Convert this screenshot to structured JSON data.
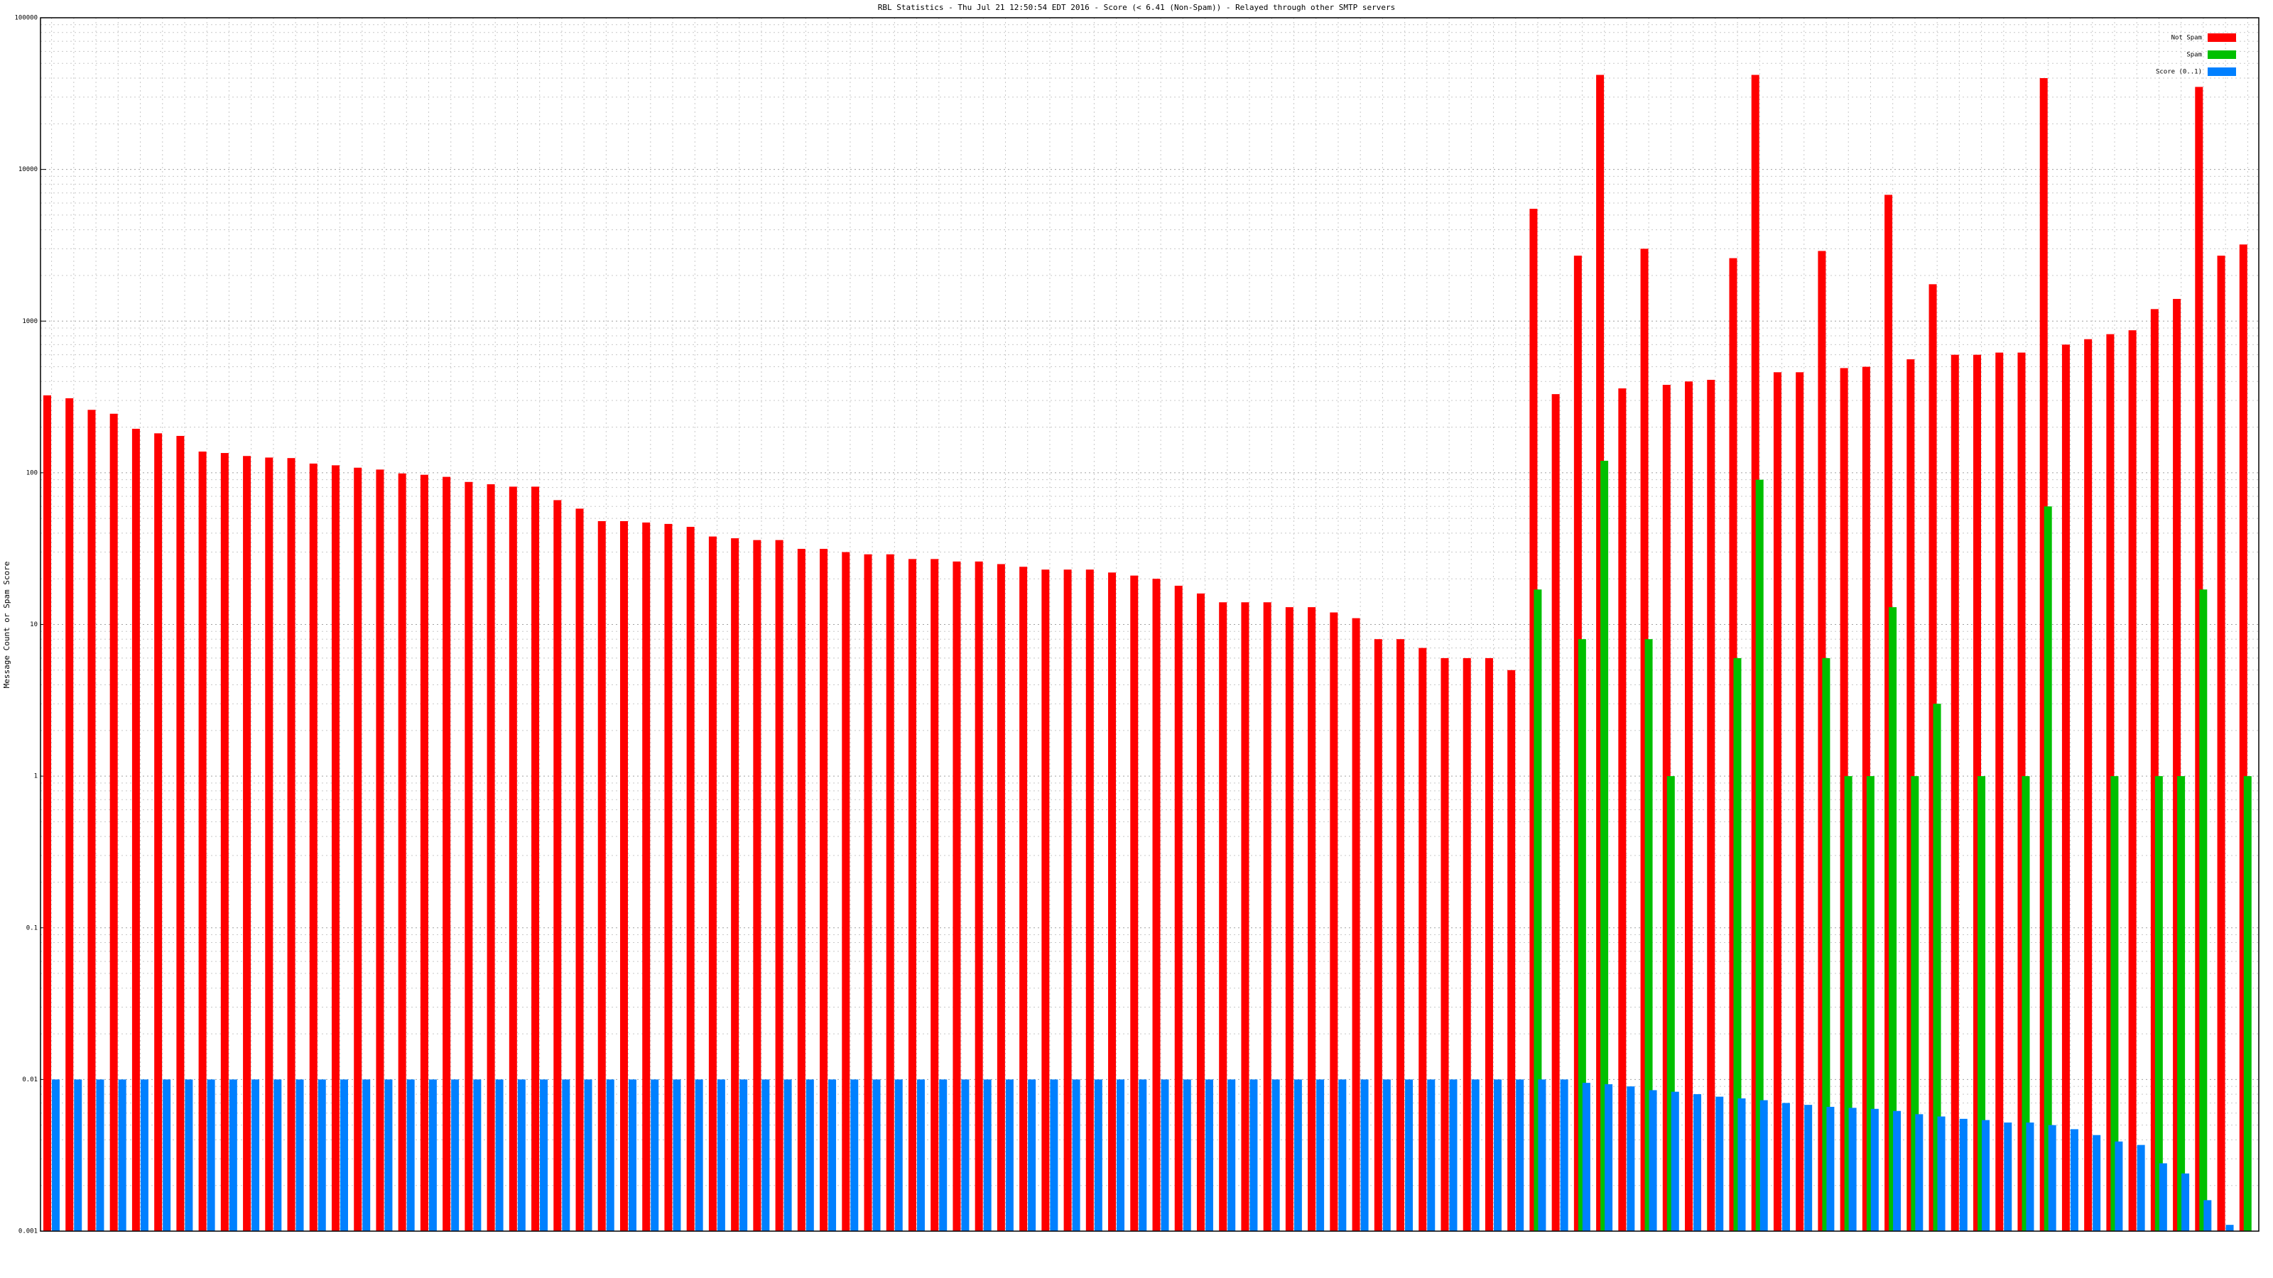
{
  "chart_data": {
    "type": "bar",
    "title": "RBL Statistics - Thu Jul 21 12:50:54 EDT 2016 - Score (< 6.41 (Non-Spam)) - Relayed through other SMTP servers",
    "y_label": "Message Count or Spam Score",
    "log_scale": true,
    "grid": true,
    "legend_position": "top-right",
    "ylim": [
      0.001,
      100000
    ],
    "yticks": [
      0.001,
      0.01,
      0.1,
      1,
      10,
      100,
      1000,
      10000,
      100000
    ],
    "categories": [
      null,
      null,
      null,
      null,
      null,
      null,
      null,
      null,
      null,
      null,
      null,
      null,
      null,
      null,
      null,
      null,
      null,
      null,
      null,
      null,
      null,
      null,
      null,
      null,
      null,
      null,
      null,
      null,
      null,
      null,
      null,
      null,
      null,
      null,
      null,
      null,
      null,
      null,
      null,
      null,
      null,
      null,
      null,
      null,
      null,
      null,
      null,
      null,
      null,
      null,
      null,
      null,
      null,
      null,
      null,
      null,
      null,
      null,
      null,
      null,
      null,
      null,
      null,
      null,
      null,
      null,
      null,
      null,
      null,
      null,
      null,
      null,
      null,
      null,
      null,
      null,
      null,
      null,
      null,
      null,
      null,
      null,
      null,
      null,
      null,
      null,
      null,
      null,
      null,
      null,
      null,
      null,
      null,
      null,
      null,
      null,
      null,
      null,
      null,
      null
    ],
    "series": [
      {
        "name": "Not Spam",
        "color": "#ff0000",
        "values": [
          324,
          310,
          260,
          245,
          195,
          182,
          175,
          138,
          135,
          129,
          126,
          125,
          115,
          112,
          108,
          105,
          99,
          97,
          94,
          87,
          84,
          81,
          81,
          66,
          58,
          48,
          48,
          47,
          46,
          44,
          38,
          37,
          36,
          36,
          31.5,
          31.5,
          30,
          29,
          29,
          27,
          27,
          26,
          26,
          25,
          24,
          23,
          23,
          23,
          22,
          21,
          20,
          18,
          16,
          14,
          14,
          14,
          13,
          13,
          12,
          11,
          8,
          8,
          7,
          6,
          6,
          6,
          5,
          5500,
          330,
          2700,
          42000,
          360,
          3000,
          380,
          400,
          410,
          2600,
          42000,
          460,
          460,
          2900,
          490,
          500,
          6800,
          560,
          1750,
          600,
          600,
          620,
          620,
          40000,
          700,
          760,
          820,
          870,
          1200,
          1400,
          35000,
          2700,
          3200
        ]
      },
      {
        "name": "Spam",
        "color": "#00c000",
        "values": [
          null,
          null,
          null,
          null,
          null,
          null,
          null,
          null,
          null,
          null,
          null,
          null,
          null,
          null,
          null,
          null,
          null,
          null,
          null,
          null,
          null,
          null,
          null,
          null,
          null,
          null,
          null,
          null,
          null,
          null,
          null,
          null,
          null,
          null,
          null,
          null,
          null,
          null,
          null,
          null,
          null,
          null,
          null,
          null,
          null,
          null,
          null,
          null,
          null,
          null,
          null,
          null,
          null,
          null,
          null,
          null,
          null,
          null,
          null,
          null,
          null,
          null,
          null,
          null,
          null,
          null,
          null,
          17,
          null,
          8,
          120,
          null,
          8,
          1,
          null,
          null,
          6,
          90,
          null,
          null,
          6,
          1,
          1,
          13,
          1,
          3,
          null,
          1,
          null,
          1,
          60,
          null,
          null,
          1,
          null,
          1,
          1,
          17,
          null,
          1
        ]
      },
      {
        "name": "Score (0..1)",
        "color": "#0080ff",
        "values": [
          0.01,
          0.01,
          0.01,
          0.01,
          0.01,
          0.01,
          0.01,
          0.01,
          0.01,
          0.01,
          0.01,
          0.01,
          0.01,
          0.01,
          0.01,
          0.01,
          0.01,
          0.01,
          0.01,
          0.01,
          0.01,
          0.01,
          0.01,
          0.01,
          0.01,
          0.01,
          0.01,
          0.01,
          0.01,
          0.01,
          0.01,
          0.01,
          0.01,
          0.01,
          0.01,
          0.01,
          0.01,
          0.01,
          0.01,
          0.01,
          0.01,
          0.01,
          0.01,
          0.01,
          0.01,
          0.01,
          0.01,
          0.01,
          0.01,
          0.01,
          0.01,
          0.01,
          0.01,
          0.01,
          0.01,
          0.01,
          0.01,
          0.01,
          0.01,
          0.01,
          0.01,
          0.01,
          0.01,
          0.01,
          0.01,
          0.01,
          0.01,
          0.01,
          0.01,
          0.0095,
          0.0093,
          0.009,
          0.0085,
          0.0083,
          0.008,
          0.0077,
          0.0075,
          0.0073,
          0.007,
          0.0068,
          0.0066,
          0.0065,
          0.0064,
          0.0062,
          0.0059,
          0.0057,
          0.0055,
          0.0054,
          0.0052,
          0.0052,
          0.005,
          0.0047,
          0.0043,
          0.0039,
          0.0037,
          0.0028,
          0.0024,
          0.0016,
          0.0011,
          0.001
        ]
      }
    ]
  }
}
